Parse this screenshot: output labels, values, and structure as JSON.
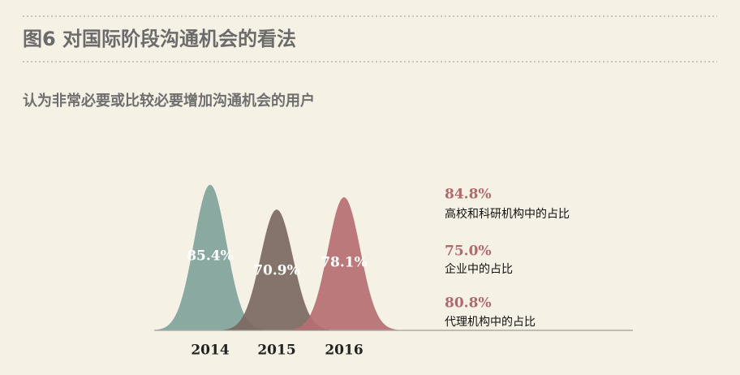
{
  "chart_data": {
    "type": "bell",
    "title": "图6  对国际阶段沟通机会的看法",
    "subtitle": "认为非常必要或比较必要增加沟通机会的用户",
    "categories": [
      "2014",
      "2015",
      "2016"
    ],
    "values": [
      85.4,
      70.9,
      78.1
    ],
    "value_labels": [
      "85.4%",
      "70.9%",
      "78.1%"
    ],
    "colors": [
      "#7fa39b",
      "#7b6962",
      "#b56f72"
    ],
    "ylim": [
      0,
      100
    ],
    "annotations": [
      {
        "value_label": "84.8%",
        "label": "高校和科研机构中的占比"
      },
      {
        "value_label": "75.0%",
        "label": "企业中的占比"
      },
      {
        "value_label": "80.8%",
        "label": "代理机构中的占比"
      }
    ]
  }
}
